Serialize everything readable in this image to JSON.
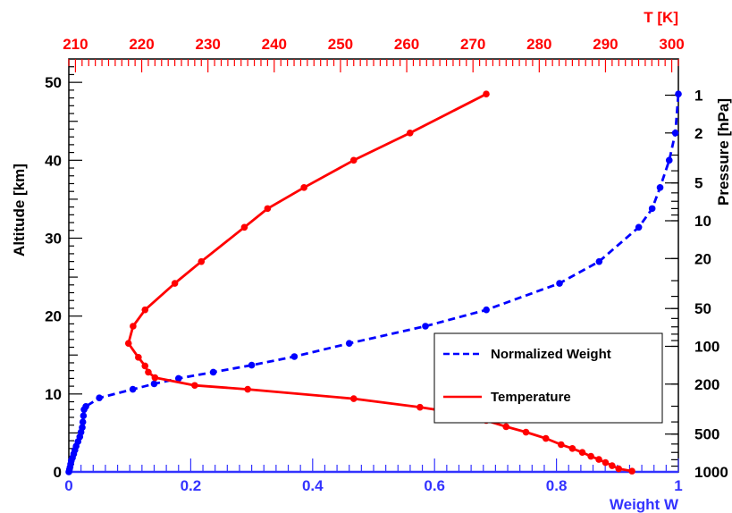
{
  "chart_data": {
    "type": "line",
    "axes": {
      "bottom": {
        "label": "Weight W",
        "range": [
          0,
          1
        ],
        "ticks": [
          0,
          0.2,
          0.4,
          0.6,
          0.8,
          1
        ],
        "tick_labels": [
          "0",
          "0.2",
          "0.4",
          "0.6",
          "0.8",
          "1"
        ],
        "color": "#3333ff"
      },
      "top": {
        "label": "T [K]",
        "range": [
          209,
          301
        ],
        "ticks": [
          210,
          220,
          230,
          240,
          250,
          260,
          270,
          280,
          290,
          300
        ],
        "tick_labels": [
          "210",
          "220",
          "230",
          "240",
          "250",
          "260",
          "270",
          "280",
          "290",
          "300"
        ],
        "color": "#ff0000"
      },
      "left": {
        "label": "Altitude [km]",
        "range": [
          0,
          53
        ],
        "ticks": [
          0,
          10,
          20,
          30,
          40,
          50
        ],
        "tick_labels": [
          "0",
          "10",
          "20",
          "30",
          "40",
          "50"
        ],
        "color": "#000000"
      },
      "right": {
        "label": "Pressure [hPa]",
        "scale": "log",
        "ticks": [
          1,
          2,
          5,
          10,
          20,
          50,
          100,
          200,
          500,
          1000
        ],
        "tick_labels": [
          "1",
          "2",
          "5",
          "10",
          "20",
          "50",
          "100",
          "200",
          "500",
          "1000"
        ],
        "color": "#000000"
      }
    },
    "series": [
      {
        "name": "Normalized Weight",
        "color": "#0000ff",
        "line_style": "dashed",
        "x_axis": "bottom",
        "points": [
          [
            0.0,
            0.0
          ],
          [
            0.001,
            0.3
          ],
          [
            0.002,
            0.6
          ],
          [
            0.003,
            1.0
          ],
          [
            0.004,
            1.4
          ],
          [
            0.006,
            1.8
          ],
          [
            0.008,
            2.3
          ],
          [
            0.01,
            2.8
          ],
          [
            0.012,
            3.3
          ],
          [
            0.015,
            3.9
          ],
          [
            0.018,
            4.5
          ],
          [
            0.02,
            5.1
          ],
          [
            0.022,
            5.7
          ],
          [
            0.023,
            6.4
          ],
          [
            0.024,
            7.2
          ],
          [
            0.025,
            8.0
          ],
          [
            0.028,
            8.4
          ],
          [
            0.05,
            9.5
          ],
          [
            0.105,
            10.6
          ],
          [
            0.14,
            11.3
          ],
          [
            0.18,
            12.0
          ],
          [
            0.237,
            12.8
          ],
          [
            0.3,
            13.7
          ],
          [
            0.37,
            14.8
          ],
          [
            0.46,
            16.5
          ],
          [
            0.585,
            18.7
          ],
          [
            0.685,
            20.8
          ],
          [
            0.805,
            24.2
          ],
          [
            0.87,
            27.0
          ],
          [
            0.935,
            31.4
          ],
          [
            0.957,
            33.8
          ],
          [
            0.97,
            36.5
          ],
          [
            0.985,
            40.0
          ],
          [
            0.995,
            43.5
          ],
          [
            1.0,
            48.5
          ]
        ]
      },
      {
        "name": "Temperature",
        "color": "#ff0000",
        "line_style": "solid",
        "x_axis": "top",
        "points": [
          [
            294.0,
            0.1
          ],
          [
            292.0,
            0.4
          ],
          [
            291.0,
            0.8
          ],
          [
            290.0,
            1.2
          ],
          [
            289.0,
            1.6
          ],
          [
            287.8,
            2.0
          ],
          [
            286.5,
            2.5
          ],
          [
            285.0,
            3.0
          ],
          [
            283.3,
            3.5
          ],
          [
            281.0,
            4.3
          ],
          [
            278.0,
            5.1
          ],
          [
            275.0,
            5.8
          ],
          [
            272.0,
            6.6
          ],
          [
            268.8,
            7.4
          ],
          [
            262.0,
            8.3
          ],
          [
            252.0,
            9.4
          ],
          [
            236.0,
            10.6
          ],
          [
            228.0,
            11.1
          ],
          [
            222.0,
            12.1
          ],
          [
            221.0,
            12.8
          ],
          [
            220.5,
            13.6
          ],
          [
            219.5,
            14.7
          ],
          [
            218.0,
            16.5
          ],
          [
            218.7,
            18.7
          ],
          [
            220.5,
            20.8
          ],
          [
            225.0,
            24.2
          ],
          [
            229.0,
            27.0
          ],
          [
            235.5,
            31.4
          ],
          [
            239.0,
            33.8
          ],
          [
            244.5,
            36.5
          ],
          [
            252.0,
            40.0
          ],
          [
            260.5,
            43.5
          ],
          [
            272.0,
            48.5
          ]
        ]
      }
    ],
    "legend": {
      "position": "bottom-right",
      "entries": [
        "Normalized Weight",
        "Temperature"
      ]
    }
  }
}
